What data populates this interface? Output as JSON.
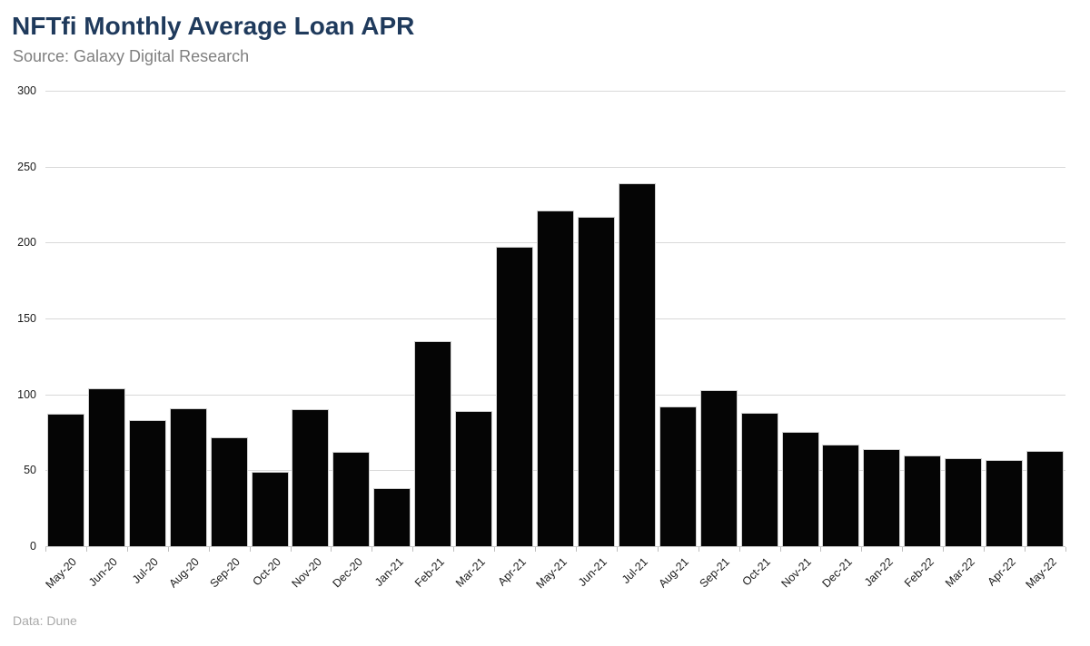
{
  "header": {
    "title": "NFTfi Monthly Average Loan APR",
    "source": "Source: Galaxy Digital Research"
  },
  "footer": {
    "credit": "Data: Dune"
  },
  "colors": {
    "title": "#1f3a5c",
    "subtitle": "#7f7f7f",
    "bar_fill": "#050505",
    "bar_stroke": "#cfcfcf",
    "gridline": "#d9d9d9",
    "axis_text": "#1a1a1a",
    "footer_text": "#a9a9a9",
    "background": "#ffffff"
  },
  "chart_data": {
    "type": "bar",
    "title": "NFTfi Monthly Average Loan APR",
    "subtitle": "Source: Galaxy Digital Research",
    "xlabel": "",
    "ylabel": "",
    "ylim": [
      0,
      300
    ],
    "yticks": [
      0,
      50,
      100,
      150,
      200,
      250,
      300
    ],
    "grid": "horizontal",
    "legend": "none",
    "categories": [
      "May-20",
      "Jun-20",
      "Jul-20",
      "Aug-20",
      "Sep-20",
      "Oct-20",
      "Nov-20",
      "Dec-20",
      "Jan-21",
      "Feb-21",
      "Mar-21",
      "Apr-21",
      "May-21",
      "Jun-21",
      "Jul-21",
      "Aug-21",
      "Sep-21",
      "Oct-21",
      "Nov-21",
      "Dec-21",
      "Jan-22",
      "Feb-22",
      "Mar-22",
      "Apr-22",
      "May-22"
    ],
    "values": [
      87,
      104,
      83,
      91,
      72,
      49,
      90,
      62,
      38,
      135,
      89,
      197,
      221,
      217,
      239,
      92,
      103,
      88,
      75,
      67,
      64,
      60,
      58,
      57,
      63
    ]
  }
}
